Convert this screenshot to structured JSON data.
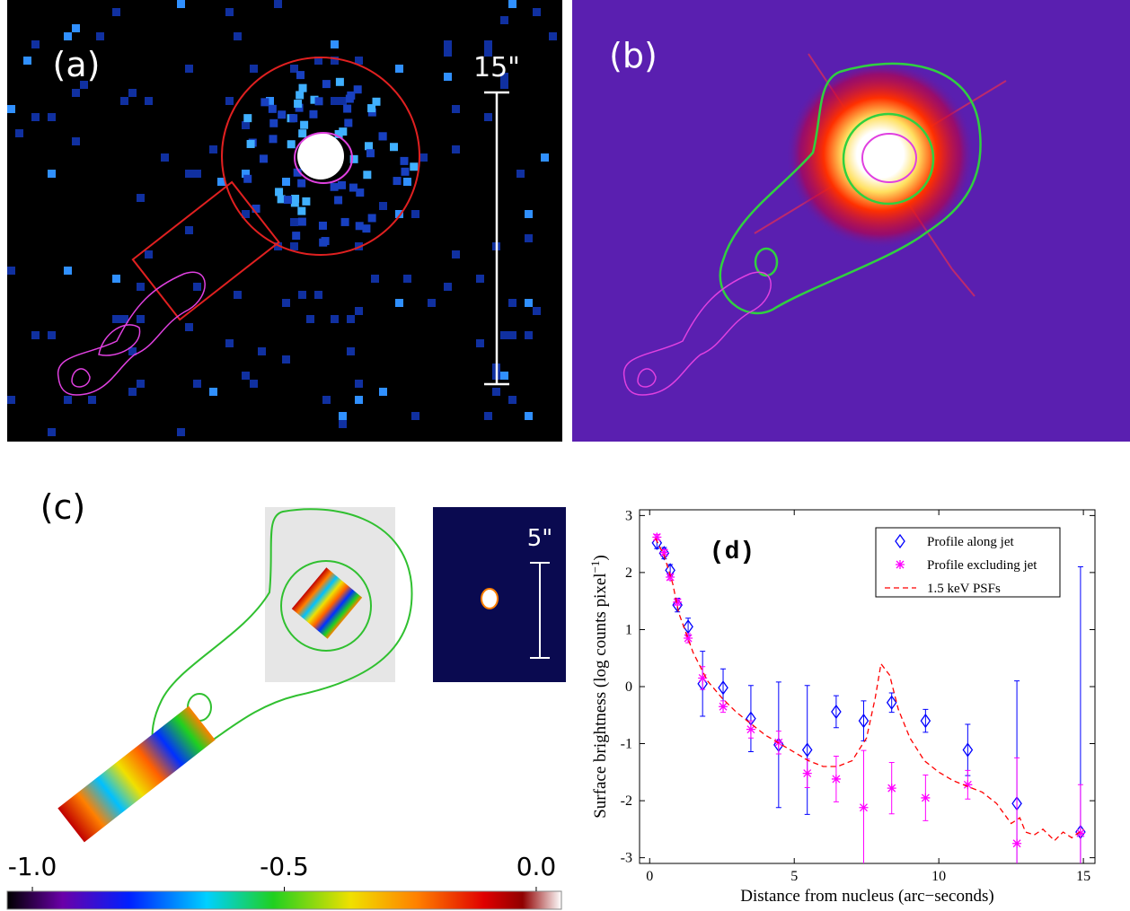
{
  "panels": {
    "a": {
      "label": "(a)",
      "scale_label": "15\""
    },
    "b": {
      "label": "(b)"
    },
    "c": {
      "label": "(c)",
      "inset_scale_label": "5\"",
      "colorbar_lim": [
        -1.05,
        0.05
      ],
      "colorbar_ticks": [
        {
          "value": -1.0,
          "label": "-1.0"
        },
        {
          "value": -0.5,
          "label": "-0.5"
        },
        {
          "value": 0.0,
          "label": "0.0"
        }
      ]
    }
  },
  "chart_data": {
    "type": "scatter",
    "title": "(d)",
    "xlabel": "Distance from nucleus (arc−seconds)",
    "ylabel": {
      "text": "Surface brightness (log counts pixel",
      "superscript": "−1",
      "close": ")"
    },
    "xlim": [
      -0.35,
      15.4
    ],
    "ylim": [
      -3.1,
      3.1
    ],
    "xticks": [
      0,
      5,
      10,
      15
    ],
    "yticks": [
      -3,
      -2,
      -1,
      0,
      1,
      2,
      3
    ],
    "legend": "upper right",
    "series": [
      {
        "name": "Profile along jet",
        "color": "#0000ff",
        "marker": "diamond",
        "x": [
          0.25,
          0.5,
          0.71,
          0.96,
          1.33,
          1.83,
          2.54,
          3.5,
          4.46,
          5.45,
          6.45,
          7.4,
          8.37,
          9.54,
          11.0,
          12.7,
          14.9
        ],
        "values": [
          2.52,
          2.34,
          2.04,
          1.43,
          1.05,
          0.05,
          -0.02,
          -0.56,
          -1.02,
          -1.11,
          -0.44,
          -0.6,
          -0.28,
          -0.6,
          -1.11,
          -2.05,
          -2.55
        ],
        "errors": [
          0.1,
          0.1,
          0.1,
          0.12,
          0.15,
          0.57,
          0.33,
          0.58,
          1.1,
          1.13,
          0.28,
          0.35,
          0.17,
          0.2,
          0.45,
          2.15,
          4.65
        ]
      },
      {
        "name": "Profile excluding jet",
        "color": "#ff00ff",
        "marker": "asterisk",
        "x": [
          0.25,
          0.5,
          0.71,
          0.96,
          1.33,
          1.83,
          2.54,
          3.5,
          4.46,
          5.45,
          6.45,
          7.4,
          8.37,
          9.54,
          11.0,
          12.7,
          14.9
        ],
        "values": [
          2.62,
          2.35,
          1.92,
          1.48,
          0.85,
          0.15,
          -0.35,
          -0.75,
          -0.98,
          -1.52,
          -1.62,
          -2.12,
          -1.78,
          -1.95,
          -1.72,
          -2.75,
          -2.57
        ],
        "errors": [
          0.05,
          0.05,
          0.05,
          0.05,
          0.08,
          0.2,
          0.1,
          0.15,
          0.2,
          0.25,
          0.4,
          1.0,
          0.45,
          0.4,
          0.25,
          1.5,
          0.85
        ]
      },
      {
        "name": "1.5 keV PSFs",
        "color": "#ff0000",
        "style": "dashed",
        "x": [
          0.2,
          0.5,
          0.8,
          1.0,
          1.5,
          2.0,
          2.5,
          3.0,
          3.5,
          4.0,
          4.5,
          5.0,
          5.5,
          6.0,
          6.5,
          7.0,
          7.5,
          7.8,
          8.0,
          8.3,
          8.6,
          9.0,
          9.5,
          10.0,
          10.5,
          11.0,
          11.5,
          12.0,
          12.5,
          12.8,
          13.0,
          13.3,
          13.6,
          14.0,
          14.3,
          14.6,
          15.0
        ],
        "values": [
          2.6,
          2.3,
          1.8,
          1.3,
          0.6,
          0.1,
          -0.2,
          -0.45,
          -0.65,
          -0.85,
          -1.0,
          -1.15,
          -1.3,
          -1.4,
          -1.4,
          -1.3,
          -0.9,
          -0.2,
          0.4,
          0.2,
          -0.4,
          -0.9,
          -1.3,
          -1.5,
          -1.65,
          -1.75,
          -1.85,
          -2.05,
          -2.4,
          -2.3,
          -2.55,
          -2.6,
          -2.5,
          -2.7,
          -2.55,
          -2.65,
          -2.5
        ]
      }
    ]
  }
}
